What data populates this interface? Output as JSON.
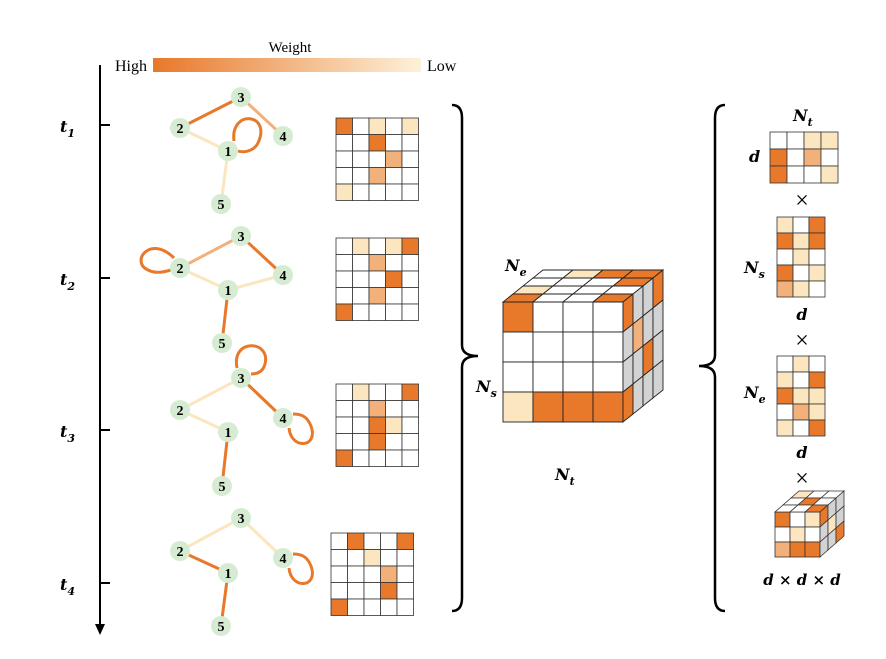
{
  "legend": {
    "title": "Weight",
    "high": "High",
    "low": "Low"
  },
  "colors": {
    "high": "#e8782a",
    "mid": "#f2b07a",
    "low": "#fbe6c0",
    "node": "#d6ecd2",
    "cell_empty": "#ffffff",
    "cube_side": "#d3d3d3"
  },
  "time_axis": {
    "t1": "t",
    "t1_sub": "1",
    "t2": "t",
    "t2_sub": "2",
    "t3": "t",
    "t3_sub": "3",
    "t4": "t",
    "t4_sub": "4"
  },
  "graphs": [
    {
      "nodes": [
        "1",
        "2",
        "3",
        "4",
        "5"
      ],
      "edges": [
        [
          "2",
          "3",
          "high"
        ],
        [
          "3",
          "4",
          "mid"
        ],
        [
          "2",
          "1",
          "low"
        ],
        [
          "1",
          "5",
          "low"
        ]
      ],
      "self_loops": [
        [
          "1",
          "high"
        ]
      ]
    },
    {
      "nodes": [
        "1",
        "2",
        "3",
        "4",
        "5"
      ],
      "edges": [
        [
          "2",
          "3",
          "mid"
        ],
        [
          "3",
          "4",
          "high"
        ],
        [
          "2",
          "1",
          "low"
        ],
        [
          "1",
          "4",
          "low"
        ],
        [
          "1",
          "5",
          "high"
        ]
      ],
      "self_loops": [
        [
          "2",
          "high"
        ]
      ]
    },
    {
      "nodes": [
        "1",
        "2",
        "3",
        "4",
        "5"
      ],
      "edges": [
        [
          "2",
          "3",
          "low"
        ],
        [
          "3",
          "4",
          "high"
        ],
        [
          "2",
          "1",
          "low"
        ],
        [
          "1",
          "5",
          "high"
        ]
      ],
      "self_loops": [
        [
          "3",
          "high"
        ],
        [
          "4",
          "high"
        ]
      ]
    },
    {
      "nodes": [
        "1",
        "2",
        "3",
        "4",
        "5"
      ],
      "edges": [
        [
          "2",
          "3",
          "low"
        ],
        [
          "3",
          "4",
          "low"
        ],
        [
          "2",
          "1",
          "high"
        ],
        [
          "1",
          "5",
          "high"
        ]
      ],
      "self_loops": [
        [
          "4",
          "high"
        ]
      ]
    }
  ],
  "adjacency": [
    {
      "cells": [
        [
          0,
          0,
          "high"
        ],
        [
          0,
          2,
          "low"
        ],
        [
          0,
          4,
          "low"
        ],
        [
          1,
          2,
          "high"
        ],
        [
          2,
          3,
          "mid"
        ],
        [
          3,
          2,
          "mid"
        ],
        [
          4,
          0,
          "low"
        ]
      ]
    },
    {
      "cells": [
        [
          0,
          1,
          "low"
        ],
        [
          0,
          3,
          "low"
        ],
        [
          0,
          4,
          "high"
        ],
        [
          1,
          2,
          "mid"
        ],
        [
          2,
          3,
          "high"
        ],
        [
          3,
          2,
          "mid"
        ],
        [
          4,
          0,
          "high"
        ]
      ]
    },
    {
      "cells": [
        [
          0,
          1,
          "low"
        ],
        [
          0,
          4,
          "high"
        ],
        [
          1,
          2,
          "mid"
        ],
        [
          2,
          2,
          "high"
        ],
        [
          2,
          3,
          "low"
        ],
        [
          3,
          2,
          "high"
        ],
        [
          4,
          0,
          "high"
        ]
      ]
    },
    {
      "cells": [
        [
          0,
          1,
          "high"
        ],
        [
          0,
          4,
          "high"
        ],
        [
          1,
          2,
          "low"
        ],
        [
          2,
          3,
          "mid"
        ],
        [
          3,
          3,
          "high"
        ],
        [
          4,
          0,
          "high"
        ]
      ]
    }
  ],
  "tensor": {
    "ne": "N",
    "ne_sub": "e",
    "ns": "N",
    "ns_sub": "s",
    "nt": "N",
    "nt_sub": "t"
  },
  "decomposition": {
    "nt": "N",
    "nt_sub": "t",
    "d_top": "d",
    "ns": "N",
    "ns_sub": "s",
    "d_mid": "d",
    "ne": "N",
    "ne_sub": "e",
    "d_bot": "d",
    "times": "×",
    "core": "d × d × d"
  }
}
